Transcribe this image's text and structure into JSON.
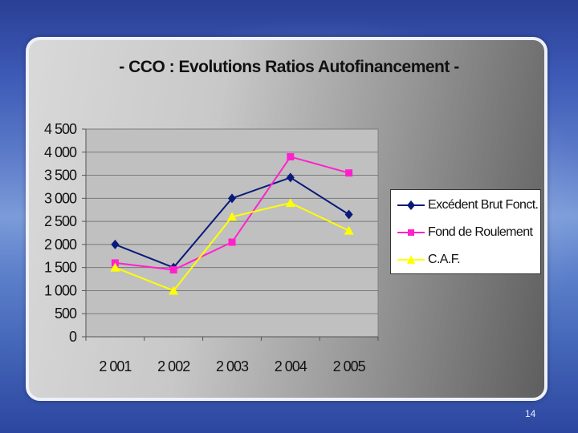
{
  "slide": {
    "page_number": "14"
  },
  "chart_data": {
    "type": "line",
    "title": "- CCO : Evolutions Ratios Autofinancement -",
    "categories": [
      "2 001",
      "2 002",
      "2 003",
      "2 004",
      "2 005"
    ],
    "ylim": [
      0,
      4500
    ],
    "yticks": [
      0,
      500,
      1000,
      1500,
      2000,
      2500,
      3000,
      3500,
      4000,
      4500
    ],
    "ytick_labels": [
      "0",
      "500",
      "1 000",
      "1 500",
      "2 000",
      "2 500",
      "3 000",
      "3 500",
      "4 000",
      "4 500"
    ],
    "grid": true,
    "legend_position": "right",
    "series": [
      {
        "name": "Excédent Brut Fonct.",
        "color": "#0a1a7a",
        "marker": "diamond",
        "values": [
          2000,
          1500,
          3000,
          3450,
          2650
        ]
      },
      {
        "name": "Fond de Roulement",
        "color": "#ff22cc",
        "marker": "square",
        "values": [
          1600,
          1450,
          2050,
          3900,
          3550
        ]
      },
      {
        "name": "C.A.F.",
        "color": "#ffff00",
        "marker": "triangle",
        "values": [
          1500,
          1000,
          2600,
          2900,
          2300
        ]
      }
    ]
  }
}
